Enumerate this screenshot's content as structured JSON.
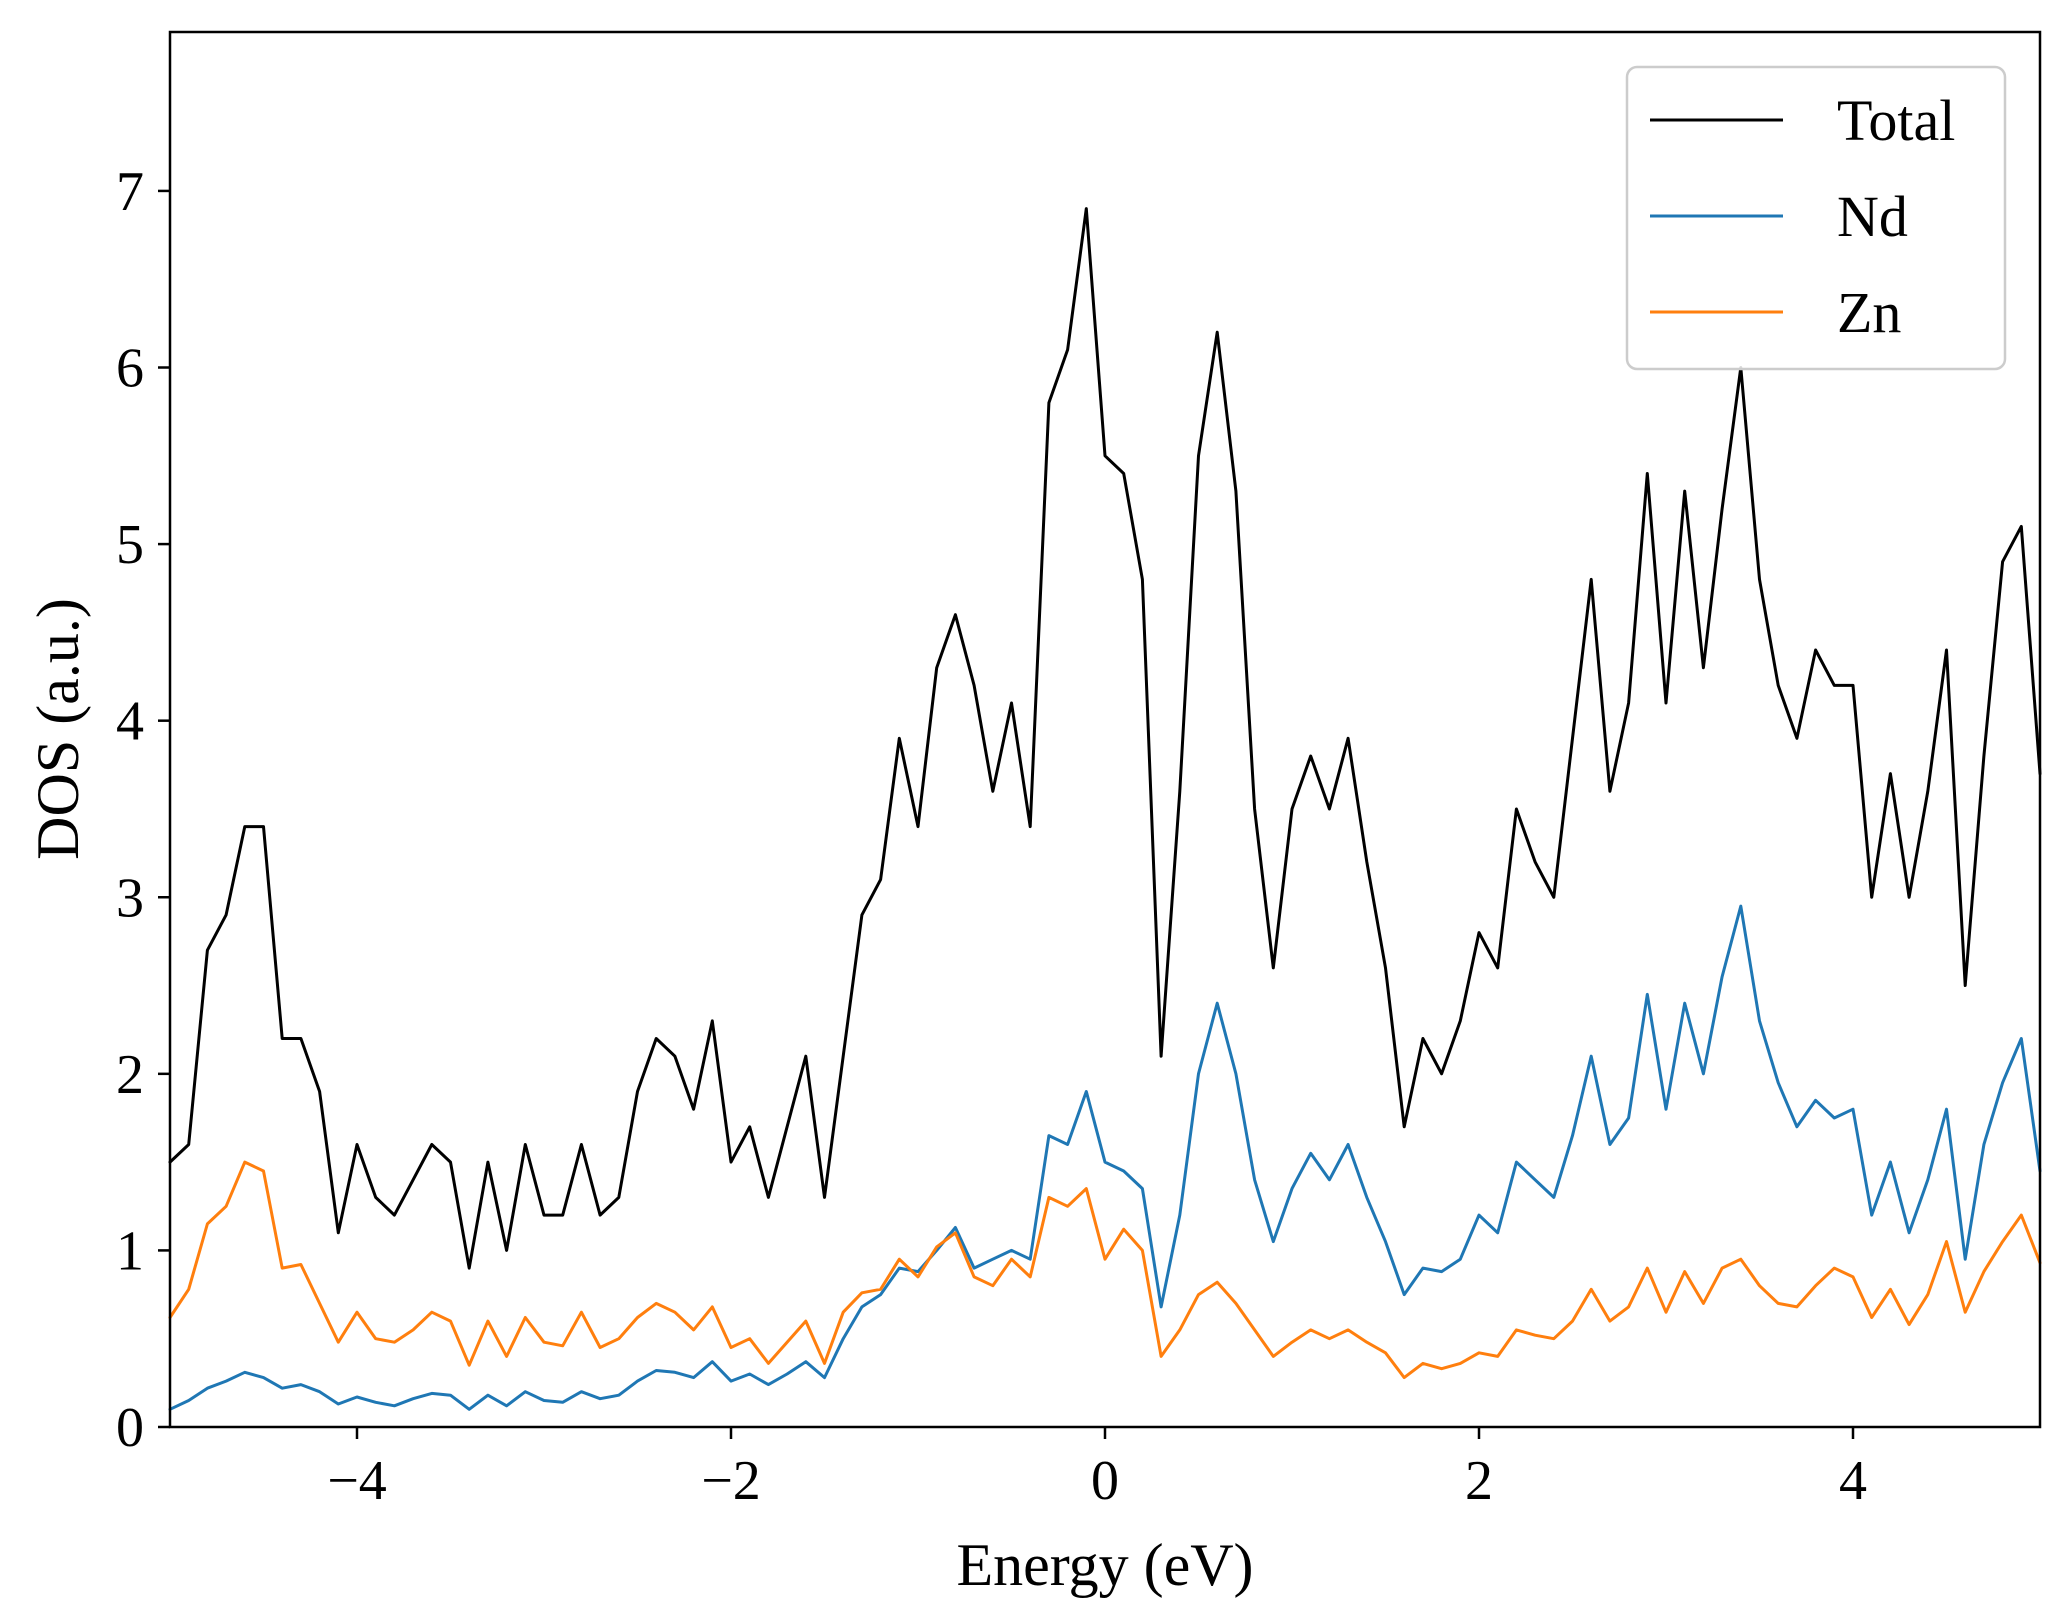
{
  "chart_data": {
    "type": "line",
    "xlabel": "Energy (eV)",
    "ylabel": "DOS (a.u.)",
    "xlim": [
      -5,
      5
    ],
    "ylim": [
      0,
      7.9
    ],
    "xticks": [
      -4,
      -2,
      0,
      2,
      4
    ],
    "xtick_labels": [
      "−4",
      "−2",
      "0",
      "2",
      "4"
    ],
    "yticks": [
      0,
      1,
      2,
      3,
      4,
      5,
      6,
      7
    ],
    "ytick_labels": [
      "0",
      "1",
      "2",
      "3",
      "4",
      "5",
      "6",
      "7"
    ],
    "grid": false,
    "legend_position": "top-right",
    "x": [
      -5.0,
      -4.9,
      -4.8,
      -4.7,
      -4.6,
      -4.5,
      -4.4,
      -4.3,
      -4.2,
      -4.1,
      -4.0,
      -3.9,
      -3.8,
      -3.7,
      -3.6,
      -3.5,
      -3.4,
      -3.3,
      -3.2,
      -3.1,
      -3.0,
      -2.9,
      -2.8,
      -2.7,
      -2.6,
      -2.5,
      -2.4,
      -2.3,
      -2.2,
      -2.1,
      -2.0,
      -1.9,
      -1.8,
      -1.7,
      -1.6,
      -1.5,
      -1.4,
      -1.3,
      -1.2,
      -1.1,
      -1.0,
      -0.9,
      -0.8,
      -0.7,
      -0.6,
      -0.5,
      -0.4,
      -0.3,
      -0.2,
      -0.1,
      0.0,
      0.1,
      0.2,
      0.3,
      0.4,
      0.5,
      0.6,
      0.7,
      0.8,
      0.9,
      1.0,
      1.1,
      1.2,
      1.3,
      1.4,
      1.5,
      1.6,
      1.7,
      1.8,
      1.9,
      2.0,
      2.1,
      2.2,
      2.3,
      2.4,
      2.5,
      2.6,
      2.7,
      2.8,
      2.9,
      3.0,
      3.1,
      3.2,
      3.3,
      3.4,
      3.5,
      3.6,
      3.7,
      3.8,
      3.9,
      4.0,
      4.1,
      4.2,
      4.3,
      4.4,
      4.5,
      4.6,
      4.7,
      4.8,
      4.9,
      5.0
    ],
    "series": [
      {
        "name": "Total",
        "color": "#000000",
        "values": [
          1.5,
          1.6,
          2.7,
          2.9,
          3.4,
          3.4,
          2.2,
          2.2,
          1.9,
          1.1,
          1.6,
          1.3,
          1.2,
          1.4,
          1.6,
          1.5,
          0.9,
          1.5,
          1.0,
          1.6,
          1.2,
          1.2,
          1.6,
          1.2,
          1.3,
          1.9,
          2.2,
          2.1,
          1.8,
          2.3,
          1.5,
          1.7,
          1.3,
          1.7,
          2.1,
          1.3,
          2.1,
          2.9,
          3.1,
          3.9,
          3.4,
          4.3,
          4.6,
          4.2,
          3.6,
          4.1,
          3.4,
          5.8,
          6.1,
          6.9,
          5.5,
          5.4,
          4.8,
          2.1,
          3.6,
          5.5,
          6.2,
          5.3,
          3.5,
          2.6,
          3.5,
          3.8,
          3.5,
          3.9,
          3.2,
          2.6,
          1.7,
          2.2,
          2.0,
          2.3,
          2.8,
          2.6,
          3.5,
          3.2,
          3.0,
          3.9,
          4.8,
          3.6,
          4.1,
          5.4,
          4.1,
          5.3,
          4.3,
          5.2,
          6.0,
          4.8,
          4.2,
          3.9,
          4.4,
          4.2,
          4.2,
          3.0,
          3.7,
          3.0,
          3.6,
          4.4,
          2.5,
          3.8,
          4.9,
          5.1,
          3.7
        ]
      },
      {
        "name": "Nd",
        "color": "#1f77b4",
        "values": [
          0.1,
          0.15,
          0.22,
          0.26,
          0.31,
          0.28,
          0.22,
          0.24,
          0.2,
          0.13,
          0.17,
          0.14,
          0.12,
          0.16,
          0.19,
          0.18,
          0.1,
          0.18,
          0.12,
          0.2,
          0.15,
          0.14,
          0.2,
          0.16,
          0.18,
          0.26,
          0.32,
          0.31,
          0.28,
          0.37,
          0.26,
          0.3,
          0.24,
          0.3,
          0.37,
          0.28,
          0.5,
          0.68,
          0.75,
          0.9,
          0.88,
          1.0,
          1.13,
          0.9,
          0.95,
          1.0,
          0.95,
          1.65,
          1.6,
          1.9,
          1.5,
          1.45,
          1.35,
          0.68,
          1.2,
          2.0,
          2.4,
          2.0,
          1.4,
          1.05,
          1.35,
          1.55,
          1.4,
          1.6,
          1.3,
          1.05,
          0.75,
          0.9,
          0.88,
          0.95,
          1.2,
          1.1,
          1.5,
          1.4,
          1.3,
          1.65,
          2.1,
          1.6,
          1.75,
          2.45,
          1.8,
          2.4,
          2.0,
          2.55,
          2.95,
          2.3,
          1.95,
          1.7,
          1.85,
          1.75,
          1.8,
          1.2,
          1.5,
          1.1,
          1.4,
          1.8,
          0.95,
          1.6,
          1.95,
          2.2,
          1.45
        ]
      },
      {
        "name": "Zn",
        "color": "#ff7f0e",
        "values": [
          0.62,
          0.78,
          1.15,
          1.25,
          1.5,
          1.45,
          0.9,
          0.92,
          0.7,
          0.48,
          0.65,
          0.5,
          0.48,
          0.55,
          0.65,
          0.6,
          0.35,
          0.6,
          0.4,
          0.62,
          0.48,
          0.46,
          0.65,
          0.45,
          0.5,
          0.62,
          0.7,
          0.65,
          0.55,
          0.68,
          0.45,
          0.5,
          0.36,
          0.48,
          0.6,
          0.36,
          0.65,
          0.76,
          0.78,
          0.95,
          0.85,
          1.02,
          1.1,
          0.85,
          0.8,
          0.95,
          0.85,
          1.3,
          1.25,
          1.35,
          0.95,
          1.12,
          1.0,
          0.4,
          0.55,
          0.75,
          0.82,
          0.7,
          0.55,
          0.4,
          0.48,
          0.55,
          0.5,
          0.55,
          0.48,
          0.42,
          0.28,
          0.36,
          0.33,
          0.36,
          0.42,
          0.4,
          0.55,
          0.52,
          0.5,
          0.6,
          0.78,
          0.6,
          0.68,
          0.9,
          0.65,
          0.88,
          0.7,
          0.9,
          0.95,
          0.8,
          0.7,
          0.68,
          0.8,
          0.9,
          0.85,
          0.62,
          0.78,
          0.58,
          0.75,
          1.05,
          0.65,
          0.88,
          1.05,
          1.2,
          0.93
        ]
      }
    ]
  }
}
